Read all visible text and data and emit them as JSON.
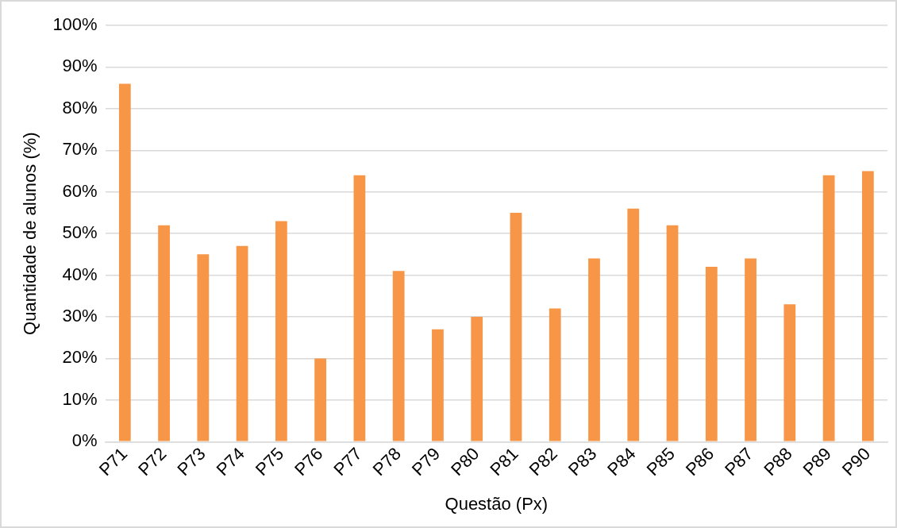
{
  "chart_data": {
    "type": "bar",
    "xlabel": "Questão (Px)",
    "ylabel": "Quantidade de alunos (%)",
    "categories": [
      "P71",
      "P72",
      "P73",
      "P74",
      "P75",
      "P76",
      "P77",
      "P78",
      "P79",
      "P80",
      "P81",
      "P82",
      "P83",
      "P84",
      "P85",
      "P86",
      "P87",
      "P88",
      "P89",
      "P90"
    ],
    "values": [
      86,
      52,
      45,
      47,
      53,
      20,
      64,
      41,
      27,
      30,
      55,
      32,
      44,
      56,
      52,
      42,
      44,
      33,
      64,
      65
    ],
    "color": "#f79646",
    "ylim": [
      0,
      100
    ],
    "yticks": [
      {
        "value": 0,
        "label": "0%"
      },
      {
        "value": 10,
        "label": "10%"
      },
      {
        "value": 20,
        "label": "20%"
      },
      {
        "value": 30,
        "label": "30%"
      },
      {
        "value": 40,
        "label": "40%"
      },
      {
        "value": 50,
        "label": "50%"
      },
      {
        "value": 60,
        "label": "60%"
      },
      {
        "value": 70,
        "label": "70%"
      },
      {
        "value": 80,
        "label": "80%"
      },
      {
        "value": 90,
        "label": "90%"
      },
      {
        "value": 100,
        "label": "100%"
      }
    ],
    "grid": "y",
    "legend": false
  }
}
